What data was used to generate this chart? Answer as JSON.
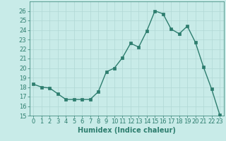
{
  "x": [
    0,
    1,
    2,
    3,
    4,
    5,
    6,
    7,
    8,
    9,
    10,
    11,
    12,
    13,
    14,
    15,
    16,
    17,
    18,
    19,
    20,
    21,
    22,
    23
  ],
  "y": [
    18.3,
    18.0,
    17.9,
    17.3,
    16.7,
    16.7,
    16.7,
    16.7,
    17.5,
    19.6,
    20.0,
    21.1,
    22.6,
    22.2,
    23.9,
    26.0,
    25.7,
    24.1,
    23.6,
    24.4,
    22.7,
    20.1,
    17.8,
    15.1
  ],
  "line_color": "#2d7d6e",
  "marker": "s",
  "markersize": 2.5,
  "linewidth": 1.0,
  "background_color": "#c8ebe8",
  "grid_color": "#b0d8d4",
  "xlabel": "Humidex (Indice chaleur)",
  "xlim": [
    -0.5,
    23.5
  ],
  "ylim": [
    15,
    27
  ],
  "yticks": [
    15,
    16,
    17,
    18,
    19,
    20,
    21,
    22,
    23,
    24,
    25,
    26
  ],
  "xticks": [
    0,
    1,
    2,
    3,
    4,
    5,
    6,
    7,
    8,
    9,
    10,
    11,
    12,
    13,
    14,
    15,
    16,
    17,
    18,
    19,
    20,
    21,
    22,
    23
  ],
  "tick_color": "#2d7d6e",
  "label_color": "#2d7d6e",
  "xlabel_fontsize": 7,
  "tick_fontsize": 6
}
